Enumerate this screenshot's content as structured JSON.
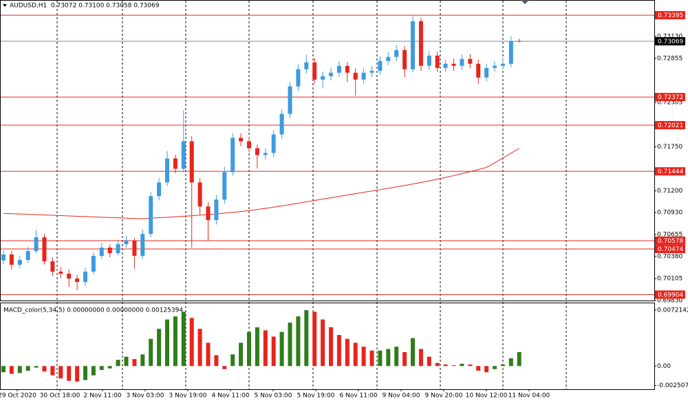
{
  "chart_data": [
    {
      "type": "candlestick",
      "title": "AUDUSD,H1",
      "subtitle": "0.73072 0.73100 0.73058 0.73069",
      "up_color": "#3d9be0",
      "down_color": "#e8241c",
      "series": [
        {
          "name": "open",
          "values": [
            0.7033,
            0.70405,
            0.70277,
            0.70337,
            0.70448,
            0.7062,
            0.7032,
            0.70191,
            0.70165,
            0.70105,
            0.70062,
            0.70191,
            0.70388,
            0.70491,
            0.70422,
            0.70534,
            0.70577,
            0.70388,
            0.70662,
            0.71134,
            0.71305,
            0.71605,
            0.71476,
            0.71819,
            0.71305,
            0.71005,
            0.70834,
            0.71091,
            0.71434,
            0.71862,
            0.71819,
            0.71733,
            0.71648,
            0.71673,
            0.71905,
            0.72162,
            0.72505,
            0.72719,
            0.72805,
            0.7259,
            0.72633,
            0.72676,
            0.72762,
            0.72676,
            0.7259,
            0.72676,
            0.727,
            0.72822,
            0.72873,
            0.72959,
            0.72719,
            0.73319,
            0.72762,
            0.7289,
            0.72736,
            0.72788,
            0.72762,
            0.72848,
            0.72788,
            0.72616,
            0.72736,
            0.72762,
            0.72788,
            0.73072
          ]
        },
        {
          "name": "high",
          "values": [
            0.7046,
            0.7045,
            0.7039,
            0.705,
            0.7071,
            0.7066,
            0.7037,
            0.7025,
            0.7022,
            0.7015,
            0.7024,
            0.7043,
            0.7055,
            0.7053,
            0.7059,
            0.7064,
            0.7061,
            0.7072,
            0.7119,
            0.7136,
            0.717,
            0.7165,
            0.72205,
            0.7188,
            0.7136,
            0.7106,
            0.7115,
            0.715,
            0.7192,
            0.7192,
            0.7187,
            0.7178,
            0.7173,
            0.7196,
            0.7222,
            0.7256,
            0.7278,
            0.729,
            0.7286,
            0.7269,
            0.7274,
            0.7282,
            0.7281,
            0.7273,
            0.7273,
            0.7276,
            0.7288,
            0.7293,
            0.7302,
            0.7301,
            0.7339,
            0.7336,
            0.7295,
            0.7294,
            0.7284,
            0.7285,
            0.729,
            0.7291,
            0.7284,
            0.7279,
            0.7282,
            0.7285,
            0.7313,
            0.731
          ]
        },
        {
          "name": "low",
          "values": [
            0.7028,
            0.7022,
            0.7023,
            0.703,
            0.7042,
            0.7028,
            0.7014,
            0.7011,
            0.7,
            0.6996,
            0.7001,
            0.7016,
            0.7035,
            0.7037,
            0.7039,
            0.7049,
            0.7023,
            0.7035,
            0.7062,
            0.7108,
            0.7126,
            0.7142,
            0.7143,
            0.70491,
            0.709,
            0.7058,
            0.7078,
            0.7104,
            0.7139,
            0.7176,
            0.7168,
            0.7148,
            0.7159,
            0.7162,
            0.7185,
            0.7211,
            0.7245,
            0.7267,
            0.7254,
            0.7248,
            0.7258,
            0.7262,
            0.7256,
            0.7239,
            0.7254,
            0.7262,
            0.7265,
            0.7277,
            0.7282,
            0.7262,
            0.7268,
            0.727,
            0.7271,
            0.7268,
            0.7269,
            0.727,
            0.7271,
            0.7273,
            0.7254,
            0.7257,
            0.7269,
            0.7272,
            0.7274,
            0.73058
          ]
        },
        {
          "name": "close",
          "values": [
            0.70405,
            0.70277,
            0.70337,
            0.70448,
            0.7062,
            0.7032,
            0.70191,
            0.70165,
            0.70105,
            0.70062,
            0.70191,
            0.70388,
            0.70491,
            0.70422,
            0.70534,
            0.70577,
            0.70388,
            0.70662,
            0.71134,
            0.71305,
            0.71605,
            0.71476,
            0.71819,
            0.71305,
            0.71005,
            0.70834,
            0.71091,
            0.71434,
            0.71862,
            0.71819,
            0.71733,
            0.71648,
            0.71673,
            0.71905,
            0.72162,
            0.72505,
            0.72719,
            0.72805,
            0.7259,
            0.72633,
            0.72676,
            0.72762,
            0.72676,
            0.7259,
            0.72676,
            0.727,
            0.72822,
            0.72873,
            0.72959,
            0.72719,
            0.73319,
            0.72762,
            0.7289,
            0.72736,
            0.72788,
            0.72762,
            0.72848,
            0.72788,
            0.72616,
            0.72736,
            0.72762,
            0.72788,
            0.73072,
            0.73069
          ]
        }
      ],
      "ma": {
        "color": "#e8241c",
        "values": [
          0.70919,
          0.70915,
          0.70911,
          0.70907,
          0.70903,
          0.70899,
          0.70895,
          0.70891,
          0.70887,
          0.70883,
          0.70879,
          0.70875,
          0.70871,
          0.70867,
          0.70863,
          0.70859,
          0.70855,
          0.70851,
          0.7086,
          0.70865,
          0.7087,
          0.70876,
          0.70882,
          0.70889,
          0.70896,
          0.70904,
          0.70912,
          0.70921,
          0.70931,
          0.70942,
          0.70954,
          0.70967,
          0.70981,
          0.70996,
          0.71012,
          0.71029,
          0.71046,
          0.71063,
          0.7108,
          0.71097,
          0.71114,
          0.71131,
          0.71148,
          0.71165,
          0.71182,
          0.71199,
          0.71216,
          0.71233,
          0.7125,
          0.71267,
          0.71286,
          0.71305,
          0.71325,
          0.71346,
          0.71368,
          0.71391,
          0.71415,
          0.7144,
          0.71466,
          0.71493,
          0.7155,
          0.7161,
          0.7167,
          0.71733
        ]
      },
      "levels": {
        "color": "#e8241c",
        "values": [
          0.73395,
          0.72372,
          0.72021,
          0.71444,
          0.70578,
          0.70474,
          0.69904
        ]
      },
      "ylim": [
        0.6983,
        0.73576
      ],
      "yticks": [
        {
          "value": 0.7313,
          "label": "0.73130"
        },
        {
          "value": 0.72855,
          "label": "0.72855"
        },
        {
          "value": 0.72305,
          "label": "0.72305"
        },
        {
          "value": 0.7175,
          "label": "0.71750"
        },
        {
          "value": 0.712,
          "label": "0.71200"
        },
        {
          "value": 0.7093,
          "label": "0.70930"
        },
        {
          "value": 0.70655,
          "label": "0.70655"
        },
        {
          "value": 0.7038,
          "label": "0.70380"
        },
        {
          "value": 0.70105,
          "label": "0.70105"
        },
        {
          "value": 0.6983,
          "label": "0.69830"
        }
      ]
    },
    {
      "type": "bar",
      "title": "MACD_color(5,34,5) 0.00000000 0.00000000 0.00125394",
      "rise_color": "#2e7d1a",
      "fall_color": "#e8241c",
      "values": [
        -0.0008,
        -0.001,
        -0.0009,
        -0.0006,
        -0.0002,
        -0.0007,
        -0.0012,
        -0.0016,
        -0.0019,
        -0.002,
        -0.0018,
        -0.0012,
        -0.0005,
        -0.0003,
        0.0008,
        0.0012,
        0.0009,
        0.0015,
        0.0035,
        0.0048,
        0.006,
        0.0064,
        0.007,
        0.0062,
        0.0048,
        0.003,
        0.0014,
        -0.0004,
        0.0015,
        0.003,
        0.0044,
        0.005,
        0.0046,
        0.0038,
        0.0044,
        0.0056,
        0.0064,
        0.0072,
        0.007,
        0.006,
        0.005,
        0.004,
        0.0035,
        0.003,
        0.0025,
        0.002,
        0.002,
        0.0022,
        0.0025,
        0.0018,
        0.0036,
        0.0022,
        0.0012,
        0.0004,
        0.0002,
        0.0001,
        0.0003,
        0.0002,
        -0.0006,
        -0.0008,
        -0.0004,
        0.0002,
        0.001,
        0.0018
      ],
      "ylim": [
        -0.00299,
        0.00809
      ],
      "yticks": [
        0.0072142,
        {
          "value": 0,
          "label": "0.00"
        },
        -0.002507
      ],
      "x_labels": [
        "29 Oct 2020",
        "30 Oct 18:00",
        "2 Nov 11:00",
        "3 Nov 03:00",
        "3 Nov 19:00",
        "4 Nov 11:00",
        "5 Nov 03:00",
        "5 Nov 19:00",
        "6 Nov 11:00",
        "9 Nov 04:00",
        "9 Nov 20:00",
        "10 Nov 12:00",
        "11 Nov 04:00"
      ]
    }
  ]
}
